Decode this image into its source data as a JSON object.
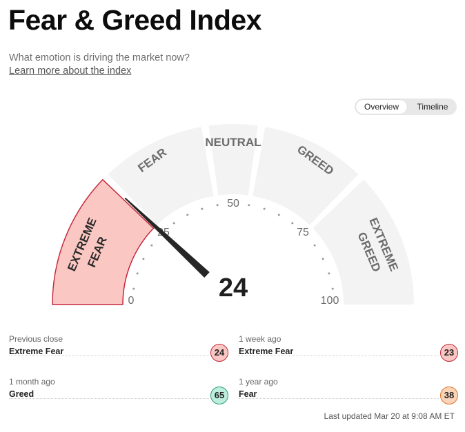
{
  "header": {
    "title": "Fear & Greed Index",
    "subtitle": "What emotion is driving the market now?",
    "learn_more": "Learn more about the index"
  },
  "toggle": {
    "overview": "Overview",
    "timeline": "Timeline",
    "active": "Overview"
  },
  "gauge": {
    "value": 24,
    "value_text": "24",
    "segments": [
      "EXTREME",
      "FEAR",
      "NEUTRAL",
      "GREED",
      "EXTREME",
      "GREED"
    ],
    "segment_labels": {
      "extreme_fear_1": "EXTREME",
      "extreme_fear_2": "FEAR",
      "fear": "FEAR",
      "neutral": "NEUTRAL",
      "greed": "GREED",
      "extreme_greed_1": "EXTREME",
      "extreme_greed_2": "GREED"
    },
    "ticks": {
      "t0": "0",
      "t25": "25",
      "t50": "50",
      "t75": "75",
      "t100": "100"
    },
    "colors": {
      "active_fill": "#fbc7c2",
      "active_stroke": "#c4283d",
      "inactive": "#f3f3f3",
      "needle": "#262626"
    }
  },
  "history": [
    {
      "label": "Previous close",
      "value": "Extreme Fear",
      "score": "24"
    },
    {
      "label": "1 week ago",
      "value": "Extreme Fear",
      "score": "23"
    },
    {
      "label": "1 month ago",
      "value": "Greed",
      "score": "65"
    },
    {
      "label": "1 year ago",
      "value": "Fear",
      "score": "38"
    }
  ],
  "footer": {
    "updated": "Last updated Mar 20 at 9:08 AM ET"
  }
}
